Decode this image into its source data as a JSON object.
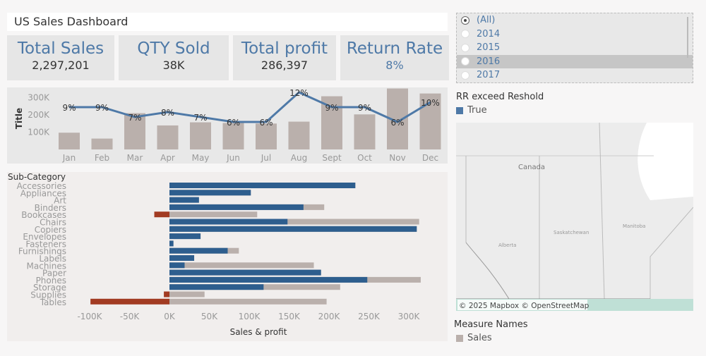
{
  "header": {
    "title": "US Sales Dashboard"
  },
  "kpis": [
    {
      "label": "Total Sales",
      "value": "2,297,201"
    },
    {
      "label": "QTY Sold",
      "value": "38K"
    },
    {
      "label": "Total profit",
      "value": "286,397"
    },
    {
      "label": "Return Rate",
      "value": "8%"
    }
  ],
  "year_filter": {
    "options": [
      "(All)",
      "2014",
      "2015",
      "2016",
      "2017"
    ],
    "selected": "(All)",
    "highlighted": "2016"
  },
  "rr_legend": {
    "title": "RR exceed Reshold",
    "items": [
      {
        "label": "True",
        "color": "#4e79a7"
      }
    ]
  },
  "map": {
    "labels": {
      "country": "Canada",
      "p1": "Alberta",
      "p2": "Saskatchewan",
      "p3": "Manitoba"
    },
    "attribution": "© 2025 Mapbox © OpenStreetMap"
  },
  "measure_legend": {
    "title": "Measure Names",
    "items": [
      {
        "label": "Sales",
        "color": "#bab0ac"
      }
    ]
  },
  "chart_data": [
    {
      "type": "bar+line",
      "ylabel": "Title",
      "yticks": [
        "100K",
        "200K",
        "300K"
      ],
      "categories": [
        "Jan",
        "Feb",
        "Mar",
        "Apr",
        "May",
        "Jun",
        "Jul",
        "Aug",
        "Sept",
        "Oct",
        "Nov",
        "Dec"
      ],
      "bar_values": [
        97000,
        63000,
        210000,
        139000,
        157000,
        153000,
        150000,
        161000,
        308000,
        203000,
        353000,
        324000
      ],
      "line_values": [
        9,
        9,
        7,
        8,
        7,
        6,
        6,
        12,
        9,
        9,
        6,
        10
      ],
      "line_labels": [
        "9%",
        "9%",
        "7%",
        "8%",
        "7%",
        "6%",
        "6%",
        "12%",
        "9%",
        "9%",
        "6%",
        "10%"
      ],
      "colors": {
        "bar": "#bab0ac",
        "line": "#4e79a7"
      }
    },
    {
      "type": "bar",
      "orientation": "horizontal",
      "ylabel": "Sub-Category",
      "xlabel": "Sales & profit",
      "xticks": [
        "-100K",
        "-50K",
        "0K",
        "50K",
        "100K",
        "150K",
        "200K",
        "250K",
        "300K"
      ],
      "xlim": [
        -100000,
        300000
      ],
      "categories": [
        "Accessories",
        "Appliances",
        "Art",
        "Binders",
        "Bookcases",
        "Chairs",
        "Copiers",
        "Envelopes",
        "Fasteners",
        "Furnishings",
        "Labels",
        "Machines",
        "Paper",
        "Phones",
        "Storage",
        "Supplies",
        "Tables"
      ],
      "series": [
        {
          "name": "Sales",
          "color": "#bab0ac",
          "values": [
            233000,
            102000,
            37000,
            194000,
            110000,
            313000,
            310000,
            39000,
            5000,
            87000,
            31000,
            181000,
            190000,
            315000,
            214000,
            44000,
            197000
          ]
        },
        {
          "color": "#2e5e8e",
          "negative_color": "#a23b22",
          "values": [
            233000,
            102000,
            37000,
            168000,
            -19000,
            148000,
            310000,
            39000,
            5000,
            73000,
            31000,
            19000,
            190000,
            248000,
            118000,
            -7000,
            -99000
          ]
        }
      ]
    }
  ]
}
